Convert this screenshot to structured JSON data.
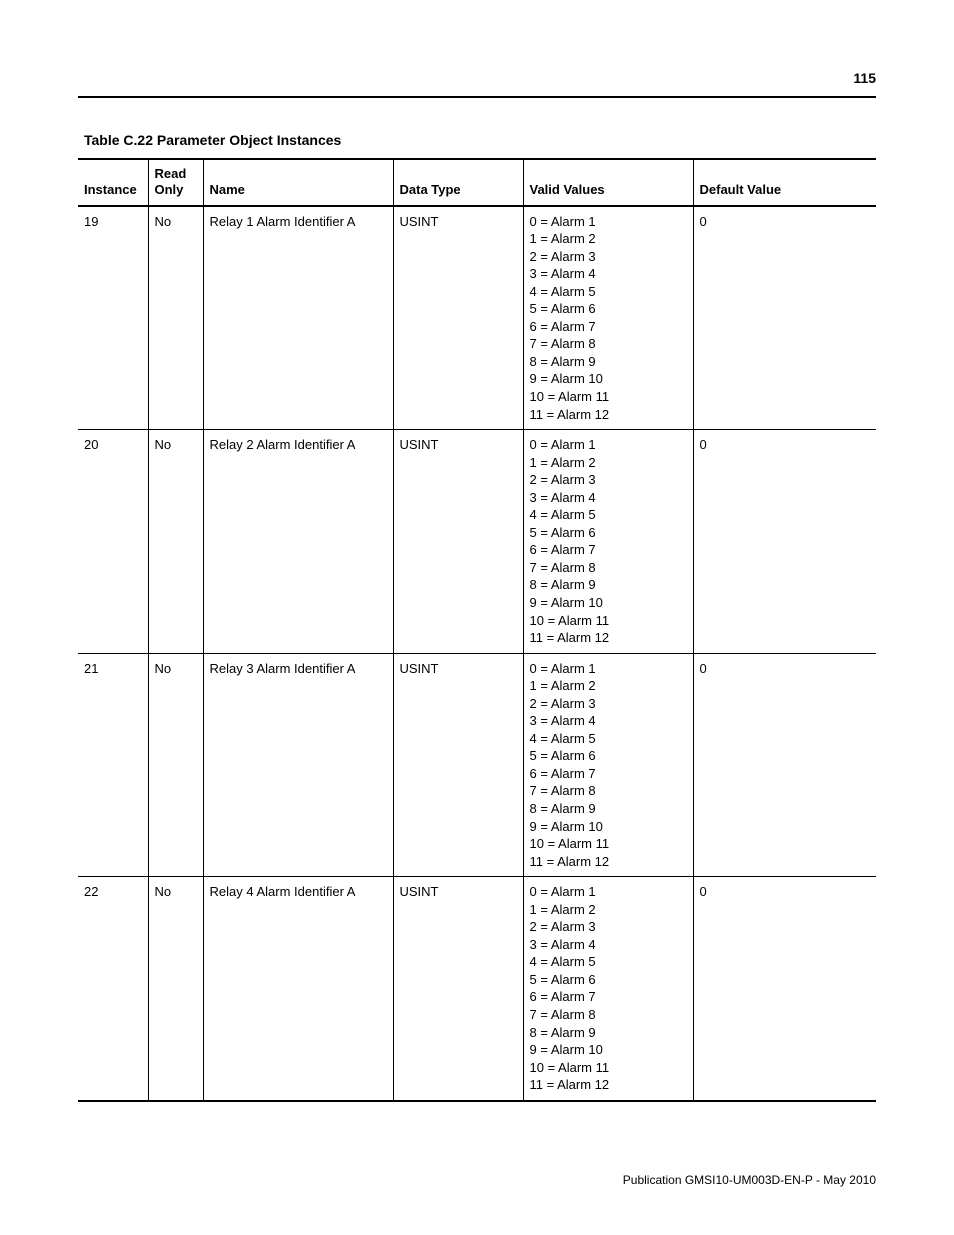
{
  "page_number": "115",
  "table_title": "Table C.22 Parameter Object Instances",
  "columns": {
    "instance": "Instance",
    "read_only_l1": "Read",
    "read_only_l2": "Only",
    "name": "Name",
    "data_type": "Data Type",
    "valid_values": "Valid Values",
    "default_value": "Default Value"
  },
  "valid_values_list": [
    "0 = Alarm 1",
    "1 = Alarm 2",
    "2 = Alarm 3",
    "3 = Alarm 4",
    "4 = Alarm 5",
    "5 = Alarm 6",
    "6 = Alarm 7",
    "7 = Alarm 8",
    "8 = Alarm 9",
    "9 = Alarm 10",
    "10 = Alarm 11",
    "11 = Alarm 12"
  ],
  "rows": [
    {
      "instance": "19",
      "read_only": "No",
      "name": "Relay 1 Alarm Identifier A",
      "data_type": "USINT",
      "default_value": "0"
    },
    {
      "instance": "20",
      "read_only": "No",
      "name": "Relay 2 Alarm Identifier A",
      "data_type": "USINT",
      "default_value": "0"
    },
    {
      "instance": "21",
      "read_only": "No",
      "name": "Relay 3 Alarm Identifier A",
      "data_type": "USINT",
      "default_value": "0"
    },
    {
      "instance": "22",
      "read_only": "No",
      "name": "Relay 4 Alarm Identifier A",
      "data_type": "USINT",
      "default_value": "0"
    }
  ],
  "footer": "Publication GMSI10-UM003D-EN-P - May 2010"
}
